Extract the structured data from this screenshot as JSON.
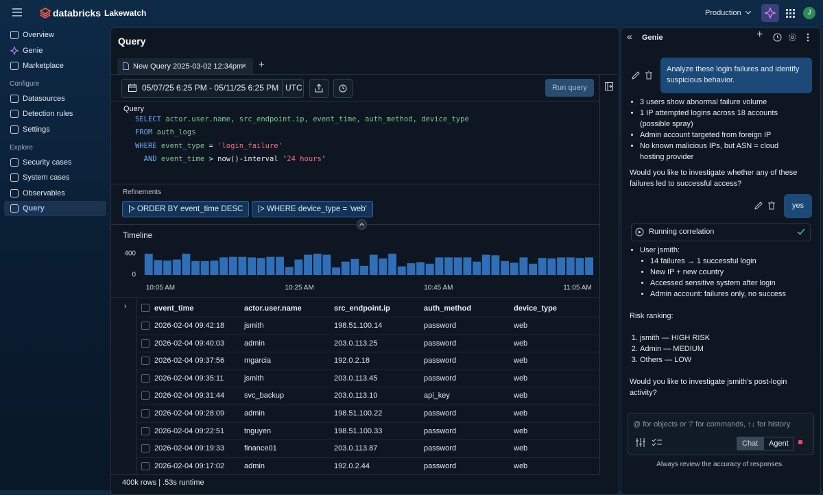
{
  "topbar": {
    "brand": "databricks",
    "app": "Lakewatch",
    "workspace": "Production",
    "avatar": "J"
  },
  "sidebar": {
    "items": [
      "Overview",
      "Genie",
      "Marketplace"
    ],
    "sections": [
      {
        "title": "Configure",
        "items": [
          "Datasources",
          "Detection rules",
          "Settings"
        ]
      },
      {
        "title": "Explore",
        "items": [
          "Security cases",
          "System cases",
          "Observables",
          "Query"
        ]
      }
    ]
  },
  "query": {
    "title": "Query",
    "tab": "New Query 2025-03-02 12:34pm",
    "date_range": "05/07/25 6:25 PM - 05/11/25 6:25 PM",
    "timezone": "UTC",
    "run_button": "Run query",
    "editor_label": "Query",
    "sql": [
      [
        {
          "text": "SELECT",
          "style": "kw"
        },
        {
          "text": " actor.user.name, src_endpoint.ip, event_time, auth_method, device_type",
          "style": "id"
        }
      ],
      [
        {
          "text": "FROM",
          "style": "kw"
        },
        {
          "text": " auth_logs",
          "style": "id"
        }
      ],
      [
        {
          "text": "WHERE",
          "style": "kw"
        },
        {
          "text": " event_type",
          "style": "id"
        },
        {
          "text": " = ",
          "style": "plain"
        },
        {
          "text": "'login_failure'",
          "style": "str"
        }
      ],
      [
        {
          "text": "  AND",
          "style": "kw"
        },
        {
          "text": " event_time",
          "style": "id"
        },
        {
          "text": " > now()-interval '",
          "style": "plain"
        },
        {
          "text": "24 hours",
          "style": "str"
        },
        {
          "text": "'",
          "style": "plain"
        }
      ]
    ],
    "refinements_label": "Refinements",
    "refinements": [
      "|> ORDER BY event_time DESC",
      "|> WHERE device_type = 'web'"
    ]
  },
  "timeline": {
    "type": "bar",
    "title": "Timeline",
    "color": "#2e6fb8",
    "values": [
      400,
      280,
      270,
      290,
      400,
      260,
      260,
      270,
      330,
      340,
      340,
      330,
      320,
      340,
      340,
      150,
      290,
      380,
      400,
      380,
      140,
      250,
      300,
      170,
      380,
      310,
      400,
      160,
      220,
      240,
      210,
      330,
      330,
      330,
      330,
      250,
      380,
      370,
      260,
      230,
      330,
      210,
      320,
      310,
      330,
      330,
      320,
      330
    ],
    "ylim": [
      0,
      400
    ],
    "yticks": [
      0,
      400
    ],
    "x_labels": [
      "10:05 AM",
      "10:25 AM",
      "10:45 AM",
      "11:05 AM"
    ]
  },
  "table": {
    "columns": [
      "event_time",
      "actor.user.name",
      "src_endpoint.ip",
      "auth_method",
      "device_type"
    ],
    "rows": [
      [
        "2026-02-04 09:42:18",
        "jsmith",
        "198.51.100.14",
        "password",
        "web"
      ],
      [
        "2026-02-04 09:40:03",
        "admin",
        "203.0.113.25",
        "password",
        "web"
      ],
      [
        "2026-02-04 09:37:56",
        "mgarcia",
        "192.0.2.18",
        "password",
        "web"
      ],
      [
        "2026-02-04 09:35:11",
        "jsmith",
        "203.0.113.45",
        "password",
        "web"
      ],
      [
        "2026-02-04 09:31:44",
        "svc_backup",
        "203.0.113.10",
        "api_key",
        "web"
      ],
      [
        "2026-02-04 09:28:09",
        "admin",
        "198.51.100.22",
        "password",
        "web"
      ],
      [
        "2026-02-04 09:22:51",
        "tnguyen",
        "198.51.100.33",
        "password",
        "web"
      ],
      [
        "2026-02-04 09:19:33",
        "finance01",
        "203.0.113.87",
        "password",
        "web"
      ],
      [
        "2026-02-04 09:17:02",
        "admin",
        "192.0.2.44",
        "password",
        "web"
      ]
    ],
    "footer": "400k rows | .53s runtime"
  },
  "genie": {
    "title": "Genie",
    "prompt": "Analyze these login failures and identify suspicious behavior.",
    "findings": [
      "3 users show abnormal failure volume",
      "1 IP attempted logins across 18 accounts (possible spray)",
      "Admin account targeted from foreign IP",
      "No known malicious IPs, but ASN = cloud hosting provider"
    ],
    "question_1": "Would you like to investigate whether any of these failures led to successful access?",
    "reply": "yes",
    "step": "Running correlation",
    "user_heading": "User jsmith:",
    "user_details": [
      "14 failures → 1 successful login",
      "New IP + new country",
      "Accessed sensitive system after login",
      "Admin account: failures only, no success"
    ],
    "risk_heading": "Risk ranking:",
    "risk_ranking": [
      "jsmith — HIGH RISK",
      "Admin — MEDIUM",
      "Others — LOW"
    ],
    "question_2": "Would you like to investigate jsmith's post-login activity?",
    "input_placeholder": "@ for objects or '/' for commands, ↑↓ for history",
    "modes": [
      "Chat",
      "Agent"
    ],
    "disclaimer": "Always review the accuracy of responses."
  }
}
